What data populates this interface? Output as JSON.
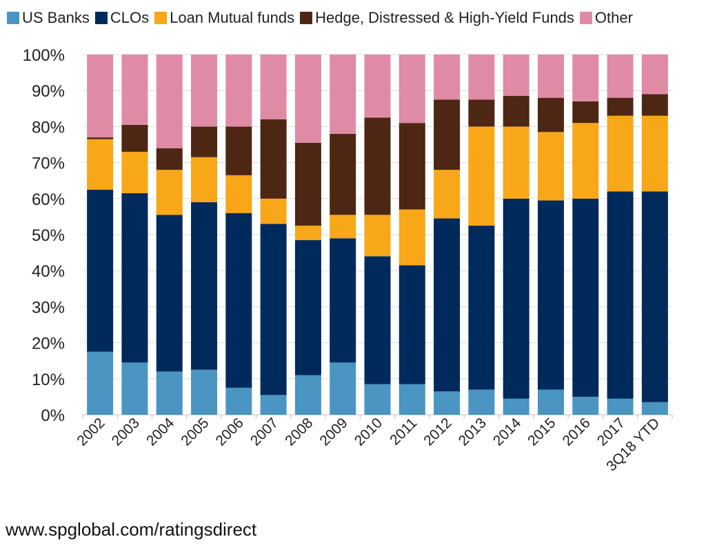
{
  "footer": {
    "text": "www.spglobal.com/ratingsdirect"
  },
  "chart_data": {
    "type": "bar",
    "stacked": true,
    "percent": true,
    "title": "",
    "xlabel": "",
    "ylabel": "",
    "ylim": [
      0,
      100
    ],
    "yticks": [
      "0%",
      "10%",
      "20%",
      "30%",
      "40%",
      "50%",
      "60%",
      "70%",
      "80%",
      "90%",
      "100%"
    ],
    "legend_position": "top",
    "grid": true,
    "categories": [
      "2002",
      "2003",
      "2004",
      "2005",
      "2006",
      "2007",
      "2008",
      "2009",
      "2010",
      "2011",
      "2012",
      "2013",
      "2014",
      "2015",
      "2016",
      "2017",
      "3Q18 YTD"
    ],
    "series": [
      {
        "name": "US Banks",
        "color": "#4a95c2",
        "values": [
          17.5,
          14.5,
          12.0,
          12.5,
          7.5,
          5.5,
          11.0,
          14.5,
          8.5,
          8.5,
          6.5,
          7.0,
          4.5,
          7.0,
          5.0,
          4.5,
          3.5
        ]
      },
      {
        "name": "CLOs",
        "color": "#002a5c",
        "values": [
          45.0,
          47.0,
          43.5,
          46.5,
          48.5,
          47.5,
          37.5,
          34.5,
          35.5,
          33.0,
          48.0,
          45.5,
          55.5,
          52.5,
          55.0,
          57.5,
          58.5
        ]
      },
      {
        "name": "Loan Mutual funds",
        "color": "#f7a718",
        "values": [
          14.0,
          11.5,
          12.5,
          12.5,
          10.5,
          7.0,
          4.0,
          6.5,
          11.5,
          15.5,
          13.5,
          27.5,
          20.0,
          19.0,
          21.0,
          21.0,
          21.0
        ]
      },
      {
        "name": "Hedge, Distressed & High-Yield Funds",
        "color": "#4d2714",
        "values": [
          0.5,
          7.5,
          6.0,
          8.5,
          13.5,
          22.0,
          23.0,
          22.5,
          27.0,
          24.0,
          19.5,
          7.5,
          8.5,
          9.5,
          6.0,
          5.0,
          6.0
        ]
      },
      {
        "name": "Other",
        "color": "#e08ba6",
        "values": [
          23.0,
          19.5,
          26.0,
          20.0,
          20.0,
          18.0,
          24.5,
          22.0,
          17.5,
          19.0,
          12.5,
          12.5,
          11.5,
          12.0,
          13.0,
          12.0,
          11.0
        ]
      }
    ]
  }
}
